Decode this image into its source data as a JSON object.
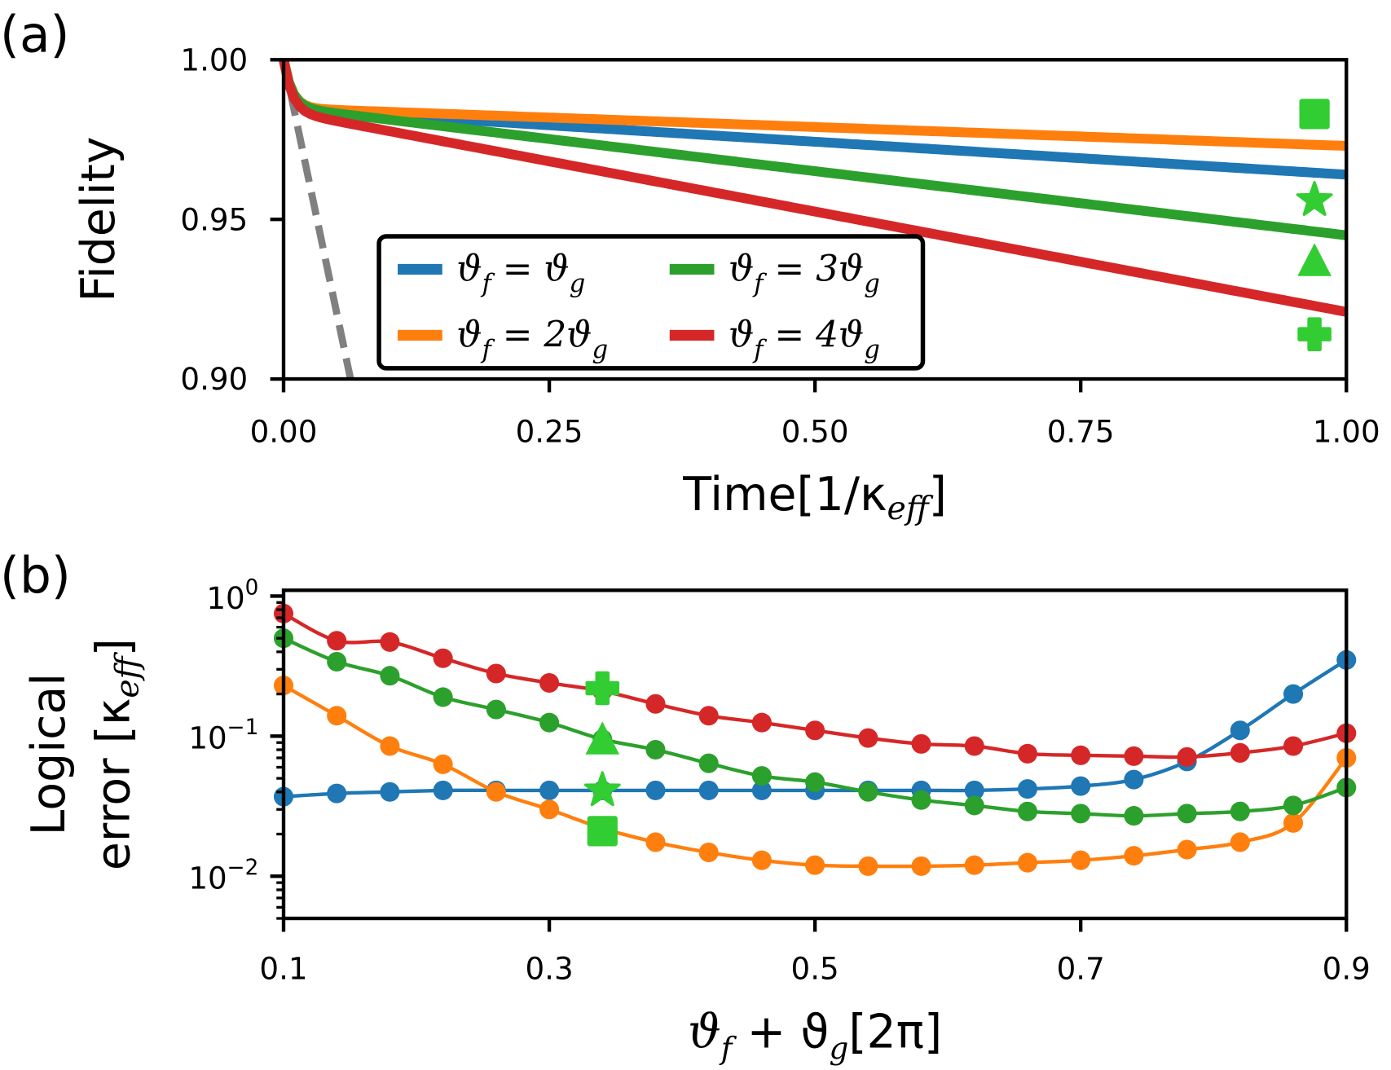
{
  "chart_data": [
    {
      "panel_label": "(a)",
      "type": "line",
      "xlabel": "Time[1/κ_eff]",
      "xlabel_parts": {
        "main": "Time[1/κ",
        "sub": "eff",
        "end": "]"
      },
      "ylabel": "Fidelity",
      "xlim": [
        0,
        1
      ],
      "ylim": [
        0.9,
        1.0
      ],
      "xticks": [
        "0.00",
        "0.25",
        "0.50",
        "0.75",
        "1.00"
      ],
      "yticks": [
        "0.90",
        "0.95",
        "1.00"
      ],
      "grid": false,
      "legend_placement": "lower-center",
      "series": [
        {
          "name": "ϑf = ϑg",
          "legend": {
            "a": "ϑ",
            "b": "f",
            "c": " = ϑ",
            "d": "g"
          },
          "color": "#1f77b4",
          "x": [
            0,
            0.03,
            1.0
          ],
          "y": [
            1.0,
            0.984,
            0.964
          ]
        },
        {
          "name": "ϑf = 2ϑg",
          "legend": {
            "a": "ϑ",
            "b": "f",
            "c": " = 2ϑ",
            "d": "g"
          },
          "color": "#ff7f0e",
          "x": [
            0,
            0.03,
            1.0
          ],
          "y": [
            1.0,
            0.9845,
            0.973
          ]
        },
        {
          "name": "ϑf = 3ϑg",
          "legend": {
            "a": "ϑ",
            "b": "f",
            "c": " = 3ϑ",
            "d": "g"
          },
          "color": "#2ca02c",
          "x": [
            0,
            0.03,
            1.0
          ],
          "y": [
            1.0,
            0.984,
            0.945
          ]
        },
        {
          "name": "ϑf = 4ϑg",
          "legend": {
            "a": "ϑ",
            "b": "f",
            "c": " = 4ϑ",
            "d": "g"
          },
          "color": "#d62728",
          "x": [
            0,
            0.03,
            1.0
          ],
          "y": [
            1.0,
            0.982,
            0.921
          ]
        }
      ],
      "reference_line": {
        "style": "dashed",
        "color": "#808080",
        "x": [
          0,
          0.063
        ],
        "y": [
          1.0,
          0.9
        ]
      },
      "markers": {
        "color": "#32cd32",
        "x": 0.97,
        "points": [
          {
            "shape": "square",
            "y": 0.983
          },
          {
            "shape": "star",
            "y": 0.956
          },
          {
            "shape": "triangle",
            "y": 0.937
          },
          {
            "shape": "plus",
            "y": 0.914
          }
        ]
      }
    },
    {
      "panel_label": "(b)",
      "type": "line",
      "xlabel": "ϑf + ϑg[2π]",
      "xlabel_parts": {
        "a": "ϑ",
        "b": "f",
        "c": " + ϑ",
        "d": "g",
        "e": "[2π]"
      },
      "ylabel": "Logical error [κ_eff]",
      "ylabel_parts": {
        "line1": "Logical",
        "line2": "error [κ",
        "sub": "eff",
        "end": "]"
      },
      "yscale": "log",
      "xlim": [
        0.1,
        0.9
      ],
      "ylim": [
        0.005,
        1.1
      ],
      "xticks": [
        "0.1",
        "0.3",
        "0.5",
        "0.7",
        "0.9"
      ],
      "yticks": [
        {
          "base": "10",
          "exp": "0",
          "value": 1
        },
        {
          "base": "10",
          "exp": "−1",
          "value": 0.1
        },
        {
          "base": "10",
          "exp": "−2",
          "value": 0.01
        }
      ],
      "grid": false,
      "x": [
        0.1,
        0.14,
        0.18,
        0.22,
        0.26,
        0.3,
        0.34,
        0.38,
        0.42,
        0.46,
        0.5,
        0.54,
        0.58,
        0.62,
        0.66,
        0.7,
        0.74,
        0.78,
        0.82,
        0.86,
        0.9
      ],
      "series": [
        {
          "color": "#1f77b4",
          "values": [
            0.037,
            0.039,
            0.04,
            0.041,
            0.041,
            0.041,
            0.041,
            0.041,
            0.041,
            0.041,
            0.041,
            0.041,
            0.041,
            0.041,
            0.042,
            0.044,
            0.049,
            0.066,
            0.11,
            0.2,
            0.35
          ]
        },
        {
          "color": "#ff7f0e",
          "values": [
            0.23,
            0.14,
            0.085,
            0.063,
            0.04,
            0.03,
            0.022,
            0.0175,
            0.0148,
            0.013,
            0.012,
            0.0118,
            0.0118,
            0.012,
            0.0125,
            0.013,
            0.014,
            0.0155,
            0.0175,
            0.024,
            0.07
          ]
        },
        {
          "color": "#2ca02c",
          "values": [
            0.5,
            0.34,
            0.27,
            0.19,
            0.155,
            0.125,
            0.095,
            0.08,
            0.064,
            0.052,
            0.047,
            0.04,
            0.035,
            0.032,
            0.029,
            0.028,
            0.027,
            0.028,
            0.029,
            0.032,
            0.043
          ]
        },
        {
          "color": "#d62728",
          "values": [
            0.75,
            0.48,
            0.47,
            0.36,
            0.28,
            0.24,
            0.21,
            0.17,
            0.14,
            0.125,
            0.11,
            0.097,
            0.088,
            0.085,
            0.075,
            0.073,
            0.072,
            0.071,
            0.076,
            0.085,
            0.105
          ]
        }
      ],
      "markers": {
        "color": "#32cd32",
        "x": 0.34,
        "points": [
          {
            "shape": "plus",
            "y": 0.22
          },
          {
            "shape": "triangle",
            "y": 0.095
          },
          {
            "shape": "star",
            "y": 0.041
          },
          {
            "shape": "square",
            "y": 0.021
          }
        ]
      }
    }
  ]
}
